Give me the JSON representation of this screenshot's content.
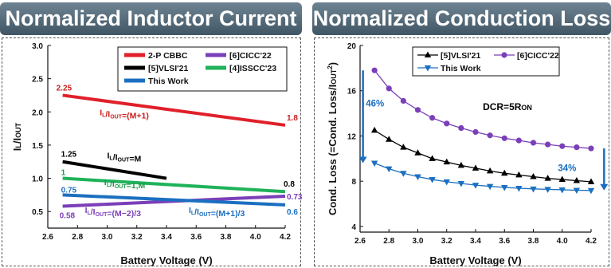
{
  "charts": [
    {
      "title": "Normalized Inductor Current",
      "chart_data": {
        "type": "line",
        "title": "Normalized Inductor Current",
        "xlabel": "Battery Voltage (V)",
        "ylabel": "IL/IOUT",
        "xlim": [
          2.6,
          4.2
        ],
        "ylim": [
          0.25,
          3.0
        ],
        "x_ticks": [
          "2.6",
          "2.8",
          "3.0",
          "3.2",
          "3.4",
          "3.6",
          "3.8",
          "4.0",
          "4.2"
        ],
        "y_ticks": [
          "0.5",
          "1.0",
          "1.5",
          "2.0",
          "2.5",
          "3.0"
        ],
        "grid": false,
        "legend_position": "top-right",
        "series": [
          {
            "name": "2-P CBBC",
            "color": "#e0202a",
            "x": [
              2.7,
              4.2
            ],
            "values": [
              2.25,
              1.8
            ]
          },
          {
            "name": "[5]VLSI'21",
            "color": "#000000",
            "x": [
              2.7,
              3.4
            ],
            "values": [
              1.25,
              1.0
            ]
          },
          {
            "name": "[4]ISSCC'23",
            "color": "#1fb25a",
            "x": [
              2.7,
              4.2
            ],
            "values": [
              1.0,
              0.8
            ]
          },
          {
            "name": "[6]CICC'22",
            "color": "#7b3fb8",
            "x": [
              2.7,
              4.2
            ],
            "values": [
              0.58,
              0.73
            ]
          },
          {
            "name": "This Work",
            "color": "#1b6fc0",
            "x": [
              2.7,
              4.2
            ],
            "values": [
              0.75,
              0.6
            ]
          }
        ],
        "data_labels": [
          {
            "text": "2.25",
            "x": 2.7,
            "y": 2.25,
            "color": "#c81e1e"
          },
          {
            "text": "1.8",
            "x": 4.2,
            "y": 1.8,
            "color": "#c81e1e"
          },
          {
            "text": "1.25",
            "x": 2.7,
            "y": 1.25,
            "color": "#000000"
          },
          {
            "text": "1",
            "x": 2.7,
            "y": 1.0,
            "color": "#1f9a4a"
          },
          {
            "text": "0.8",
            "x": 4.2,
            "y": 0.8,
            "color": "#000000"
          },
          {
            "text": "0.75",
            "x": 2.7,
            "y": 0.75,
            "color": "#1b6fc0"
          },
          {
            "text": "0.73",
            "x": 4.2,
            "y": 0.73,
            "color": "#7b3fb8"
          },
          {
            "text": "0.58",
            "x": 2.7,
            "y": 0.58,
            "color": "#7b3fb8"
          },
          {
            "text": "0.6",
            "x": 4.2,
            "y": 0.6,
            "color": "#1b6fc0"
          }
        ],
        "annotations": [
          {
            "parts": [
              {
                "t": "I"
              },
              {
                "t": "L",
                "sub": true
              },
              {
                "t": "/I"
              },
              {
                "t": "OUT",
                "sub": true
              },
              {
                "t": "=(M+1)"
              }
            ],
            "x": 2.95,
            "y": 1.95,
            "color": "#c81e1e"
          },
          {
            "parts": [
              {
                "t": "I"
              },
              {
                "t": "L",
                "sub": true
              },
              {
                "t": "/I"
              },
              {
                "t": "OUT",
                "sub": true
              },
              {
                "t": "=M"
              }
            ],
            "x": 3.0,
            "y": 1.3,
            "color": "#000000"
          },
          {
            "parts": [
              {
                "t": "I"
              },
              {
                "t": "L",
                "sub": true
              },
              {
                "t": "/I"
              },
              {
                "t": "OUT",
                "sub": true
              },
              {
                "t": "=1,M"
              }
            ],
            "x": 2.98,
            "y": 0.9,
            "color": "#1f9a4a"
          },
          {
            "parts": [
              {
                "t": "I"
              },
              {
                "t": "L",
                "sub": true
              },
              {
                "t": "/I"
              },
              {
                "t": "OUT",
                "sub": true
              },
              {
                "t": "=(M−2)/3"
              }
            ],
            "x": 2.85,
            "y": 0.48,
            "color": "#7b3fb8"
          },
          {
            "parts": [
              {
                "t": "I"
              },
              {
                "t": "L",
                "sub": true
              },
              {
                "t": "/I"
              },
              {
                "t": "OUT",
                "sub": true
              },
              {
                "t": "=(M+1)/3"
              }
            ],
            "x": 3.55,
            "y": 0.48,
            "color": "#1b6fc0"
          }
        ]
      }
    },
    {
      "title": "Normalized Conduction  Loss",
      "chart_data": {
        "type": "line",
        "title": "Normalized Conduction  Loss",
        "xlabel": "Battery Voltage (V)",
        "ylabel": "Cond. Loss (=Cond. Loss/IOUT2)",
        "xlim": [
          2.6,
          4.2
        ],
        "ylim": [
          3.5,
          20
        ],
        "x_ticks": [
          "2.6",
          "2.8",
          "3.0",
          "3.2",
          "3.4",
          "3.6",
          "3.8",
          "4.0",
          "4.2"
        ],
        "y_ticks": [
          "4",
          "8",
          "12",
          "16",
          "20"
        ],
        "grid": false,
        "legend_position": "top",
        "x": [
          2.7,
          2.8,
          2.9,
          3.0,
          3.1,
          3.2,
          3.3,
          3.4,
          3.5,
          3.6,
          3.7,
          3.8,
          3.9,
          4.0,
          4.1,
          4.2
        ],
        "series": [
          {
            "name": "[5]VLSI'21",
            "color": "#000000",
            "marker": "triangle-up",
            "values": [
              12.5,
              11.7,
              11.0,
              10.5,
              10.0,
              9.7,
              9.4,
              9.15,
              8.9,
              8.7,
              8.55,
              8.4,
              8.25,
              8.15,
              8.05,
              7.95
            ]
          },
          {
            "name": "[6]CICC'22",
            "color": "#7b3fb8",
            "marker": "circle",
            "values": [
              17.8,
              16.2,
              15.1,
              14.3,
              13.6,
              13.1,
              12.7,
              12.35,
              12.05,
              11.8,
              11.6,
              11.4,
              11.25,
              11.1,
              11.0,
              10.9
            ]
          },
          {
            "name": "This Work",
            "color": "#1b6fc0",
            "marker": "triangle-down",
            "values": [
              9.6,
              9.1,
              8.7,
              8.4,
              8.15,
              7.95,
              7.8,
              7.65,
              7.55,
              7.45,
              7.38,
              7.32,
              7.28,
              7.24,
              7.2,
              7.18
            ]
          }
        ],
        "annotations": [
          {
            "text": "DCR=5R",
            "sub": "ON",
            "color": "#000000"
          },
          {
            "text": "46%",
            "color": "#1b6fc0"
          },
          {
            "text": "34%",
            "color": "#1b6fc0"
          }
        ]
      }
    }
  ]
}
